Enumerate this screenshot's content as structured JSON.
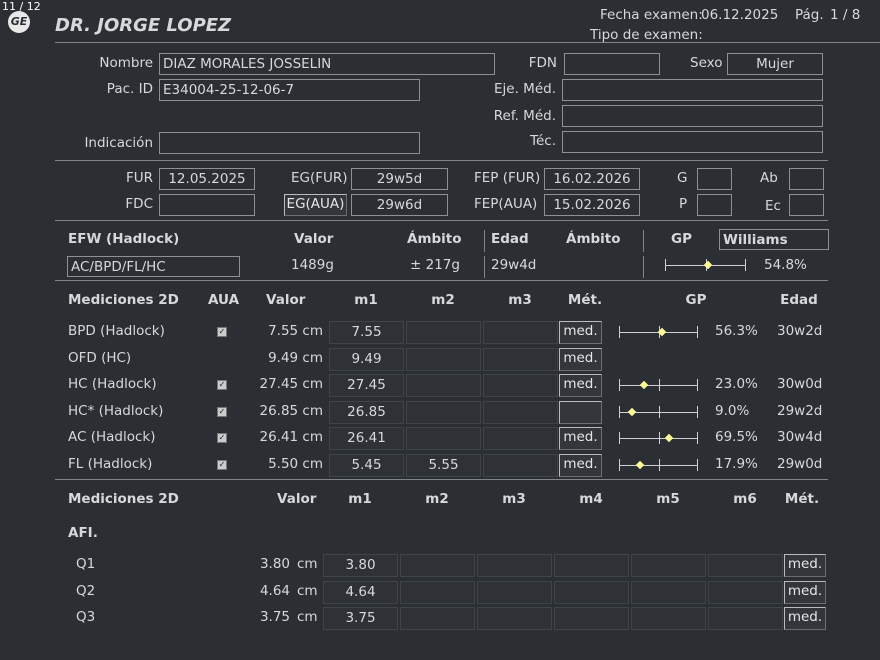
{
  "page_counter": "11 / 12",
  "logo": "GE",
  "header": {
    "doctor": "DR. JORGE LOPEZ",
    "exam_date_label": "Fecha examen:",
    "exam_date": "06.12.2025",
    "page_label": "Pág.",
    "page": "1 / 8",
    "exam_type_label": "Tipo de examen:"
  },
  "patient": {
    "name_label": "Nombre",
    "name": "DIAZ MORALES JOSSELIN",
    "fdn_label": "FDN",
    "fdn": "",
    "sex_label": "Sexo",
    "sex": "Mujer",
    "id_label": "Pac. ID",
    "id": "E34004-25-12-06-7",
    "eje_label": "Eje. Méd.",
    "eje": "",
    "ref_label": "Ref. Méd.",
    "ref": "",
    "ind_label": "Indicación",
    "ind": "",
    "tec_label": "Téc.",
    "tec": ""
  },
  "dates": {
    "fur_label": "FUR",
    "fur": "12.05.2025",
    "egfur_label": "EG(FUR)",
    "egfur": "29w5d",
    "fepfur_label": "FEP (FUR)",
    "fepfur": "16.02.2026",
    "g_label": "G",
    "g": "",
    "ab_label": "Ab",
    "ab": "",
    "fdc_label": "FDC",
    "fdc": "",
    "egaua_label": "EG(AUA)",
    "egaua": "29w6d",
    "fepaua_label": "FEP(AUA)",
    "fepaua": "15.02.2026",
    "p_label": "P",
    "p": "",
    "ec_label": "Ec",
    "ec": ""
  },
  "efw": {
    "title": "EFW (Hadlock)",
    "valor_label": "Valor",
    "ambito_label": "Ámbito",
    "edad_label": "Edad",
    "ambito2_label": "Ámbito",
    "gp_label": "GP",
    "gp_method": "Williams",
    "formula": "AC/BPD/FL/HC",
    "valor": "1489g",
    "ambito": "± 217g",
    "edad": "29w4d",
    "ambito2": "",
    "gp": "54.8%",
    "gp_value": 54.8
  },
  "measurements": {
    "headers": {
      "title": "Mediciones 2D",
      "aua": "AUA",
      "valor": "Valor",
      "m1": "m1",
      "m2": "m2",
      "m3": "m3",
      "met": "Mét.",
      "gp": "GP",
      "edad": "Edad"
    },
    "rows": [
      {
        "name": "BPD (Hadlock)",
        "aua": true,
        "valor": "7.55 cm",
        "m1": "7.55",
        "m2": "",
        "m3": "",
        "met": "med.",
        "gp": "56.3%",
        "gp_value": 56.3,
        "edad": "30w2d"
      },
      {
        "name": "OFD (HC)",
        "aua": false,
        "valor": "9.49 cm",
        "m1": "9.49",
        "m2": "",
        "m3": "",
        "met": "med.",
        "gp": "",
        "gp_value": null,
        "edad": ""
      },
      {
        "name": "HC (Hadlock)",
        "aua": true,
        "valor": "27.45 cm",
        "m1": "27.45",
        "m2": "",
        "m3": "",
        "met": "med.",
        "gp": "23.0%",
        "gp_value": 23.0,
        "edad": "30w0d"
      },
      {
        "name": "HC* (Hadlock)",
        "aua": true,
        "valor": "26.85 cm",
        "m1": "26.85",
        "m2": "",
        "m3": "",
        "met": "",
        "gp": "9.0%",
        "gp_value": 9.0,
        "edad": "29w2d"
      },
      {
        "name": "AC (Hadlock)",
        "aua": true,
        "valor": "26.41 cm",
        "m1": "26.41",
        "m2": "",
        "m3": "",
        "met": "med.",
        "gp": "69.5%",
        "gp_value": 69.5,
        "edad": "30w4d"
      },
      {
        "name": "FL (Hadlock)",
        "aua": true,
        "valor": "5.50 cm",
        "m1": "5.45",
        "m2": "5.55",
        "m3": "",
        "met": "med.",
        "gp": "17.9%",
        "gp_value": 17.9,
        "edad": "29w0d"
      }
    ]
  },
  "afi": {
    "headers": {
      "title": "Mediciones 2D",
      "valor": "Valor",
      "m1": "m1",
      "m2": "m2",
      "m3": "m3",
      "m4": "m4",
      "m5": "m5",
      "m6": "m6",
      "met": "Mét."
    },
    "section": "AFI.",
    "rows": [
      {
        "name": "Q1",
        "valor": "3.80",
        "unit": "cm",
        "m1": "3.80",
        "met": "med."
      },
      {
        "name": "Q2",
        "valor": "4.64",
        "unit": "cm",
        "m1": "4.64",
        "met": "med."
      },
      {
        "name": "Q3",
        "valor": "3.75",
        "unit": "cm",
        "m1": "3.75",
        "met": "med."
      }
    ]
  },
  "colors": {
    "background": "#2b2f33",
    "text": "#d6d8da",
    "gp_marker": "#fff89a"
  }
}
